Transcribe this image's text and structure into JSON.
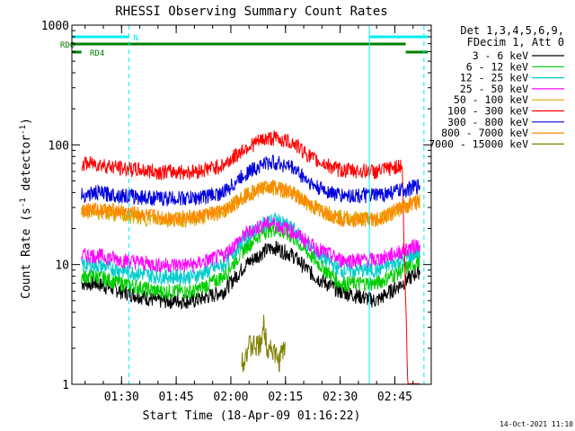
{
  "chart_data": {
    "type": "line",
    "title": "RHESSI Observing Summary Count Rates",
    "xlabel": "Start Time (18-Apr-09 01:16:22)",
    "ylabel_main": "Count Rate (s",
    "ylabel_sup1": "-1",
    "ylabel_mid": " detector",
    "ylabel_sup2": "-1",
    "ylabel_end": ")",
    "y_scale": "log",
    "ylim": [
      1,
      1000
    ],
    "y_ticks": [
      {
        "value": 1,
        "label": "1"
      },
      {
        "value": 10,
        "label": "10"
      },
      {
        "value": 100,
        "label": "100"
      },
      {
        "value": 1000,
        "label": "1000"
      }
    ],
    "xlim": [
      "01:16:22",
      "02:55:00"
    ],
    "x_ticks": [
      {
        "value": "01:30",
        "label": "01:30"
      },
      {
        "value": "01:45",
        "label": "01:45"
      },
      {
        "value": "02:00",
        "label": "02:00"
      },
      {
        "value": "02:15",
        "label": "02:15"
      },
      {
        "value": "02:30",
        "label": "02:30"
      },
      {
        "value": "02:45",
        "label": "02:45"
      }
    ],
    "legend": {
      "placement": "right",
      "header": [
        "Det 1,3,4,5,6,9,",
        "FDecim 1, Att 0"
      ]
    },
    "series": [
      {
        "name": "3 - 6 keV",
        "color": "#000000",
        "x": [
          "01:19",
          "01:23",
          "01:30",
          "01:40",
          "01:50",
          "01:58",
          "02:04",
          "02:09",
          "02:12",
          "02:17",
          "02:23",
          "02:30",
          "02:40",
          "02:47",
          "02:52"
        ],
        "values": [
          7,
          7,
          6,
          5,
          5,
          6,
          10,
          13,
          14,
          12,
          8,
          6,
          5,
          7,
          9
        ]
      },
      {
        "name": "6 - 12 keV",
        "color": "#00cc00",
        "x": [
          "01:19",
          "01:23",
          "01:30",
          "01:40",
          "01:50",
          "01:58",
          "02:04",
          "02:09",
          "02:12",
          "02:17",
          "02:23",
          "02:30",
          "02:40",
          "02:47",
          "02:52"
        ],
        "values": [
          8,
          8,
          7,
          6,
          6,
          8,
          14,
          19,
          20,
          17,
          11,
          7,
          7,
          9,
          11
        ]
      },
      {
        "name": "12 - 25 keV",
        "color": "#00cccc",
        "x": [
          "01:19",
          "01:23",
          "01:30",
          "01:40",
          "01:50",
          "01:58",
          "02:04",
          "02:09",
          "02:12",
          "02:17",
          "02:23",
          "02:30",
          "02:40",
          "02:47",
          "02:52"
        ],
        "values": [
          10,
          10,
          9,
          8,
          8,
          10,
          17,
          22,
          24,
          20,
          13,
          9,
          9,
          11,
          13
        ]
      },
      {
        "name": "25 - 50 keV",
        "color": "#ff00ff",
        "x": [
          "01:19",
          "01:23",
          "01:30",
          "01:40",
          "01:50",
          "01:58",
          "02:04",
          "02:09",
          "02:12",
          "02:17",
          "02:23",
          "02:30",
          "02:40",
          "02:47",
          "02:52"
        ],
        "values": [
          12,
          12,
          11,
          10,
          10,
          12,
          18,
          22,
          22,
          19,
          14,
          11,
          11,
          13,
          15
        ]
      },
      {
        "name": "50 - 100 keV",
        "color": "#ddaa00",
        "x": [
          "01:19",
          "01:23",
          "01:30",
          "01:40",
          "01:50",
          "01:58",
          "02:04",
          "02:09",
          "02:12",
          "02:17",
          "02:23",
          "02:30",
          "02:40",
          "02:47",
          "02:52"
        ],
        "values": [
          28,
          28,
          26,
          24,
          24,
          28,
          38,
          44,
          44,
          40,
          30,
          25,
          24,
          30,
          34
        ]
      },
      {
        "name": "100 - 300 keV",
        "color": "#ff0000",
        "x": [
          "01:19",
          "01:23",
          "01:30",
          "01:40",
          "01:50",
          "01:58",
          "02:04",
          "02:09",
          "02:12",
          "02:17",
          "02:23",
          "02:30",
          "02:40",
          "02:47",
          "02:52"
        ],
        "values": [
          70,
          70,
          64,
          60,
          60,
          68,
          95,
          112,
          115,
          105,
          75,
          62,
          60,
          68,
          0
        ]
      },
      {
        "name": "300 - 800 keV",
        "color": "#0000dd",
        "x": [
          "01:19",
          "01:23",
          "01:30",
          "01:40",
          "01:50",
          "01:58",
          "02:04",
          "02:09",
          "02:12",
          "02:17",
          "02:23",
          "02:30",
          "02:40",
          "02:47",
          "02:52"
        ],
        "values": [
          38,
          40,
          38,
          36,
          36,
          40,
          58,
          70,
          72,
          65,
          45,
          38,
          38,
          42,
          46
        ]
      },
      {
        "name": "800 - 7000 keV",
        "color": "#ff8800",
        "x": [
          "01:19",
          "01:23",
          "01:30",
          "01:40",
          "01:50",
          "01:58",
          "02:04",
          "02:09",
          "02:12",
          "02:17",
          "02:23",
          "02:30",
          "02:40",
          "02:47",
          "02:52"
        ],
        "values": [
          29,
          29,
          28,
          25,
          25,
          28,
          38,
          44,
          45,
          40,
          30,
          24,
          24,
          30,
          35
        ]
      },
      {
        "name": "7000 - 15000 keV",
        "color": "#808000",
        "x": [
          "02:03",
          "02:05",
          "02:07",
          "02:08",
          "02:09",
          "02:10",
          "02:11",
          "02:13",
          "02:15"
        ],
        "values": [
          1.5,
          2,
          2,
          2,
          3,
          2,
          2,
          1.5,
          2
        ]
      }
    ],
    "annotations": {
      "flags": [
        {
          "label": "N",
          "color": "#00eeee",
          "segments": [
            [
              "01:16:22",
              "01:32"
            ],
            [
              "02:38",
              "02:54"
            ]
          ]
        },
        {
          "label": "RDO",
          "color": "#008000",
          "segments": [
            [
              "01:16:22",
              "02:48"
            ]
          ]
        },
        {
          "label": "RD4",
          "color": "#008000",
          "segments": [
            [
              "01:16:22",
              "01:19"
            ],
            [
              "02:48",
              "02:54"
            ]
          ]
        }
      ],
      "vertical_lines": [
        {
          "time": "01:16:22",
          "style": "solid",
          "color": "#00eeee"
        },
        {
          "time": "01:32",
          "style": "dashed",
          "color": "#00eeee"
        },
        {
          "time": "02:38",
          "style": "solid",
          "color": "#00eeee"
        },
        {
          "time": "02:53",
          "style": "dashed",
          "color": "#00eeee"
        }
      ]
    },
    "timestamp": "14-Oct-2021 11:10"
  }
}
